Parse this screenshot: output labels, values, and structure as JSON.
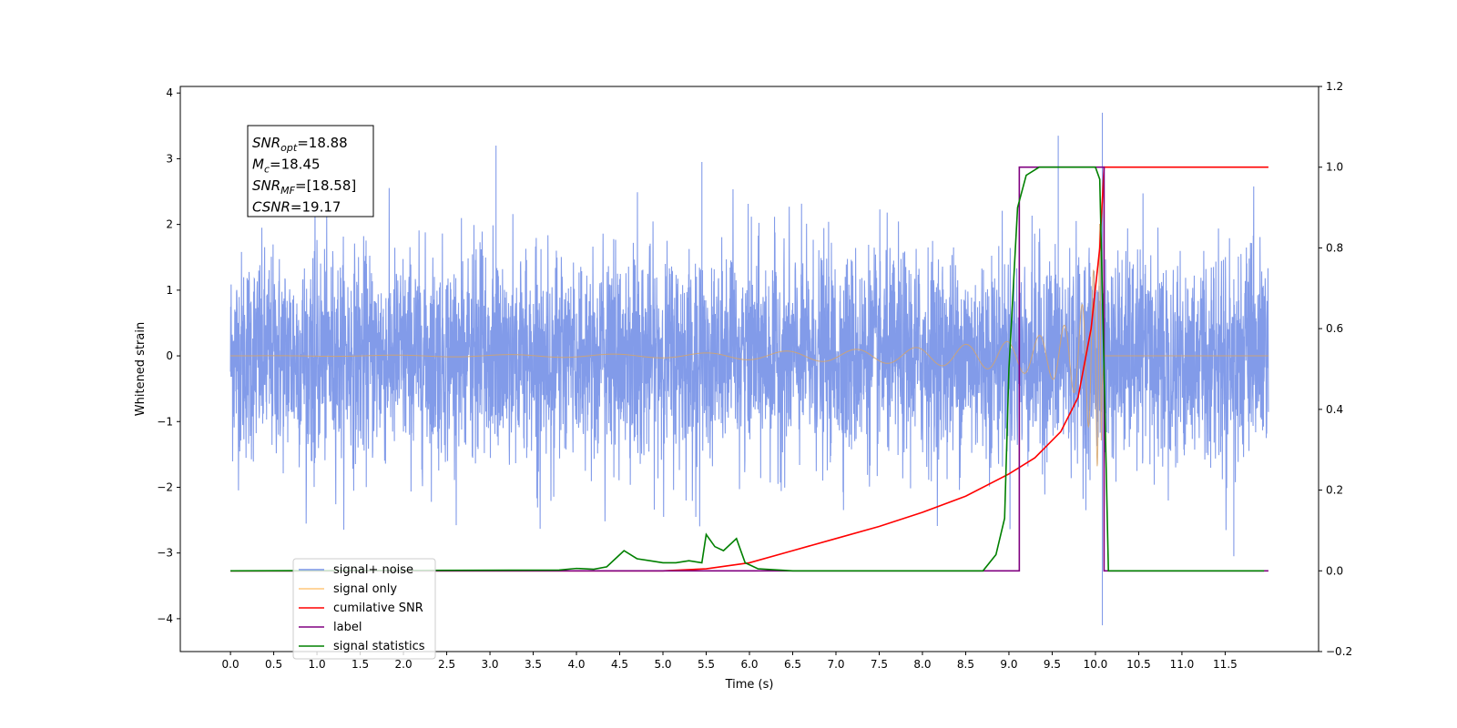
{
  "chart_data": {
    "type": "line",
    "xlabel": "Time (s)",
    "ylabel": "Whitened strain",
    "x_ticks": [
      "0.0",
      "0.5",
      "1.0",
      "1.5",
      "2.0",
      "2.5",
      "3.0",
      "3.5",
      "4.0",
      "4.5",
      "5.0",
      "5.5",
      "6.0",
      "6.5",
      "7.0",
      "7.5",
      "8.0",
      "8.5",
      "9.0",
      "9.5",
      "10.0",
      "10.5",
      "11.0",
      "11.5"
    ],
    "y_left_ticks": [
      "4",
      "3",
      "2",
      "1",
      "0",
      "−1",
      "−2",
      "−3",
      "−4"
    ],
    "y_right_ticks": [
      "1.2",
      "1.0",
      "0.8",
      "0.6",
      "0.4",
      "0.2",
      "0.0",
      "−0.2"
    ],
    "xlim": [
      -0.58,
      12.58
    ],
    "ylim_left": [
      -4.5,
      4.1
    ],
    "ylim_right": [
      -0.2,
      1.2
    ],
    "annotation": {
      "lines": [
        {
          "name": "SNR",
          "sub": "opt",
          "value": "=18.88"
        },
        {
          "name": "M",
          "sub": "c",
          "value": "=18.45"
        },
        {
          "name": "SNR",
          "sub": "MF",
          "value": "=[18.58]"
        },
        {
          "name": "CSNR",
          "sub": "",
          "value": "=19.17"
        }
      ]
    },
    "legend": {
      "placement": "lower-left",
      "entries": [
        {
          "label": "signal+ noise",
          "color": "#7b96e8"
        },
        {
          "label": "signal only",
          "color": "#ffc77a"
        },
        {
          "label": "cumilative SNR",
          "color": "#ff0000"
        },
        {
          "label": "label",
          "color": "#800080"
        },
        {
          "label": "signal statistics",
          "color": "#008000"
        }
      ]
    },
    "series": [
      {
        "name": "signal+ noise",
        "axis": "left",
        "color": "#7b96e8",
        "x_range": [
          0.0,
          12.0
        ],
        "approx_envelope": [
          -2.5,
          2.5
        ],
        "notable_peaks": [
          {
            "x": 3.07,
            "y": 3.2
          },
          {
            "x": 5.45,
            "y": 2.95
          },
          {
            "x": 9.57,
            "y": 3.35
          },
          {
            "x": 10.08,
            "y": 3.7
          },
          {
            "x": 10.08,
            "y": -4.1
          },
          {
            "x": 11.6,
            "y": -3.05
          }
        ]
      },
      {
        "name": "signal only",
        "axis": "left",
        "color": "#d6a46a",
        "description_points": {
          "x": [
            0.0,
            5.0,
            6.0,
            7.0,
            8.0,
            9.0,
            9.5,
            9.8,
            10.0,
            10.05,
            10.1,
            12.0
          ],
          "amplitude": [
            0.0,
            0.03,
            0.06,
            0.09,
            0.13,
            0.22,
            0.35,
            0.6,
            1.4,
            2.1,
            0.0,
            0.0
          ]
        }
      },
      {
        "name": "cumilative SNR",
        "axis": "right",
        "color": "#ff0000",
        "x": [
          0.0,
          5.0,
          5.5,
          6.0,
          6.5,
          7.0,
          7.5,
          8.0,
          8.5,
          9.0,
          9.3,
          9.6,
          9.8,
          9.95,
          10.05,
          10.1,
          12.0
        ],
        "y": [
          0.0,
          0.0,
          0.005,
          0.02,
          0.05,
          0.08,
          0.11,
          0.145,
          0.185,
          0.24,
          0.28,
          0.345,
          0.43,
          0.6,
          0.8,
          1.0,
          1.0
        ]
      },
      {
        "name": "label",
        "axis": "right",
        "color": "#800080",
        "x": [
          0.0,
          9.12,
          9.12,
          10.1,
          10.1,
          12.0
        ],
        "y": [
          0.0,
          0.0,
          1.0,
          1.0,
          0.0,
          0.0
        ]
      },
      {
        "name": "signal statistics",
        "axis": "right",
        "color": "#008000",
        "x": [
          0.0,
          3.8,
          4.0,
          4.2,
          4.35,
          4.45,
          4.55,
          4.7,
          4.85,
          5.0,
          5.15,
          5.3,
          5.45,
          5.5,
          5.6,
          5.7,
          5.85,
          5.95,
          6.1,
          6.5,
          8.7,
          8.85,
          8.95,
          9.0,
          9.1,
          9.2,
          9.35,
          9.5,
          10.0,
          10.05,
          10.1,
          10.15,
          11.95
        ],
        "y": [
          0.0,
          0.002,
          0.006,
          0.004,
          0.01,
          0.03,
          0.05,
          0.03,
          0.025,
          0.02,
          0.02,
          0.025,
          0.02,
          0.09,
          0.06,
          0.05,
          0.08,
          0.02,
          0.005,
          0.0,
          0.0,
          0.04,
          0.13,
          0.5,
          0.9,
          0.98,
          1.0,
          1.0,
          1.0,
          0.97,
          0.5,
          0.0,
          0.0
        ]
      }
    ]
  }
}
